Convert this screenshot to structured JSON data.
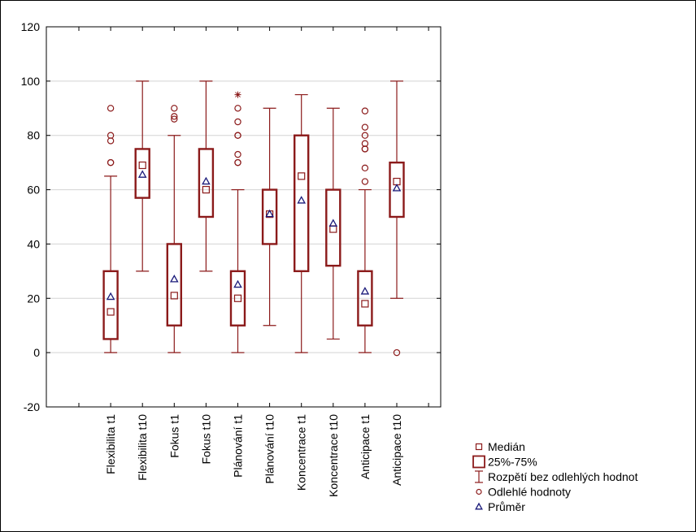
{
  "chart_data": {
    "type": "boxplot",
    "ylim": [
      -20,
      120
    ],
    "yticks": [
      -20,
      0,
      20,
      40,
      60,
      80,
      100,
      120
    ],
    "grid": true,
    "legend_position": "bottom-right",
    "colors": {
      "box": "#8b1a1a",
      "mean": "#1a1a7a",
      "grid": "#d3d3d3"
    },
    "categories": [
      "Flexibilita t1",
      "Flexibilita t10",
      "Fokus t1",
      "Fokus t10",
      "Plánování t1",
      "Plánování t10",
      "Koncentrace t1",
      "Koncentrace t10",
      "Anticipace t1",
      "Anticipace t10"
    ],
    "boxes": [
      {
        "median": 15,
        "q1": 5,
        "q3": 30,
        "whisker_low": 0,
        "whisker_high": 65,
        "mean": 20.5,
        "outliers": [
          70,
          70,
          78,
          80,
          90
        ],
        "extremes": []
      },
      {
        "median": 69,
        "q1": 57,
        "q3": 75,
        "whisker_low": 30,
        "whisker_high": 100,
        "mean": 65.5,
        "outliers": [],
        "extremes": []
      },
      {
        "median": 21,
        "q1": 10,
        "q3": 40,
        "whisker_low": 0,
        "whisker_high": 80,
        "mean": 27,
        "outliers": [
          86,
          87,
          90
        ],
        "extremes": []
      },
      {
        "median": 60,
        "q1": 50,
        "q3": 75,
        "whisker_low": 30,
        "whisker_high": 100,
        "mean": 63,
        "outliers": [],
        "extremes": []
      },
      {
        "median": 20,
        "q1": 10,
        "q3": 30,
        "whisker_low": 0,
        "whisker_high": 60,
        "mean": 25,
        "outliers": [
          70,
          70,
          73,
          80,
          80,
          85,
          90
        ],
        "extremes": [
          95
        ]
      },
      {
        "median": 51,
        "q1": 40,
        "q3": 60,
        "whisker_low": 10,
        "whisker_high": 90,
        "mean": 51,
        "outliers": [],
        "extremes": []
      },
      {
        "median": 65,
        "q1": 30,
        "q3": 80,
        "whisker_low": 0,
        "whisker_high": 95,
        "mean": 56,
        "outliers": [],
        "extremes": []
      },
      {
        "median": 45.5,
        "q1": 32,
        "q3": 60,
        "whisker_low": 5,
        "whisker_high": 90,
        "mean": 47.5,
        "outliers": [],
        "extremes": []
      },
      {
        "median": 18,
        "q1": 10,
        "q3": 30,
        "whisker_low": 0,
        "whisker_high": 60,
        "mean": 22.5,
        "outliers": [
          63,
          68,
          75,
          75,
          77,
          80,
          83,
          89
        ],
        "extremes": []
      },
      {
        "median": 63,
        "q1": 50,
        "q3": 70,
        "whisker_low": 20,
        "whisker_high": 100,
        "mean": 60.5,
        "outliers": [
          0
        ],
        "extremes": []
      }
    ],
    "legend": [
      {
        "key": "median",
        "label": "Medián"
      },
      {
        "key": "box",
        "label": "25%-75%"
      },
      {
        "key": "whisker",
        "label": "Rozpětí bez odlehlých hodnot"
      },
      {
        "key": "outlier",
        "label": "Odlehlé hodnoty"
      },
      {
        "key": "mean",
        "label": "Průměr"
      }
    ]
  }
}
